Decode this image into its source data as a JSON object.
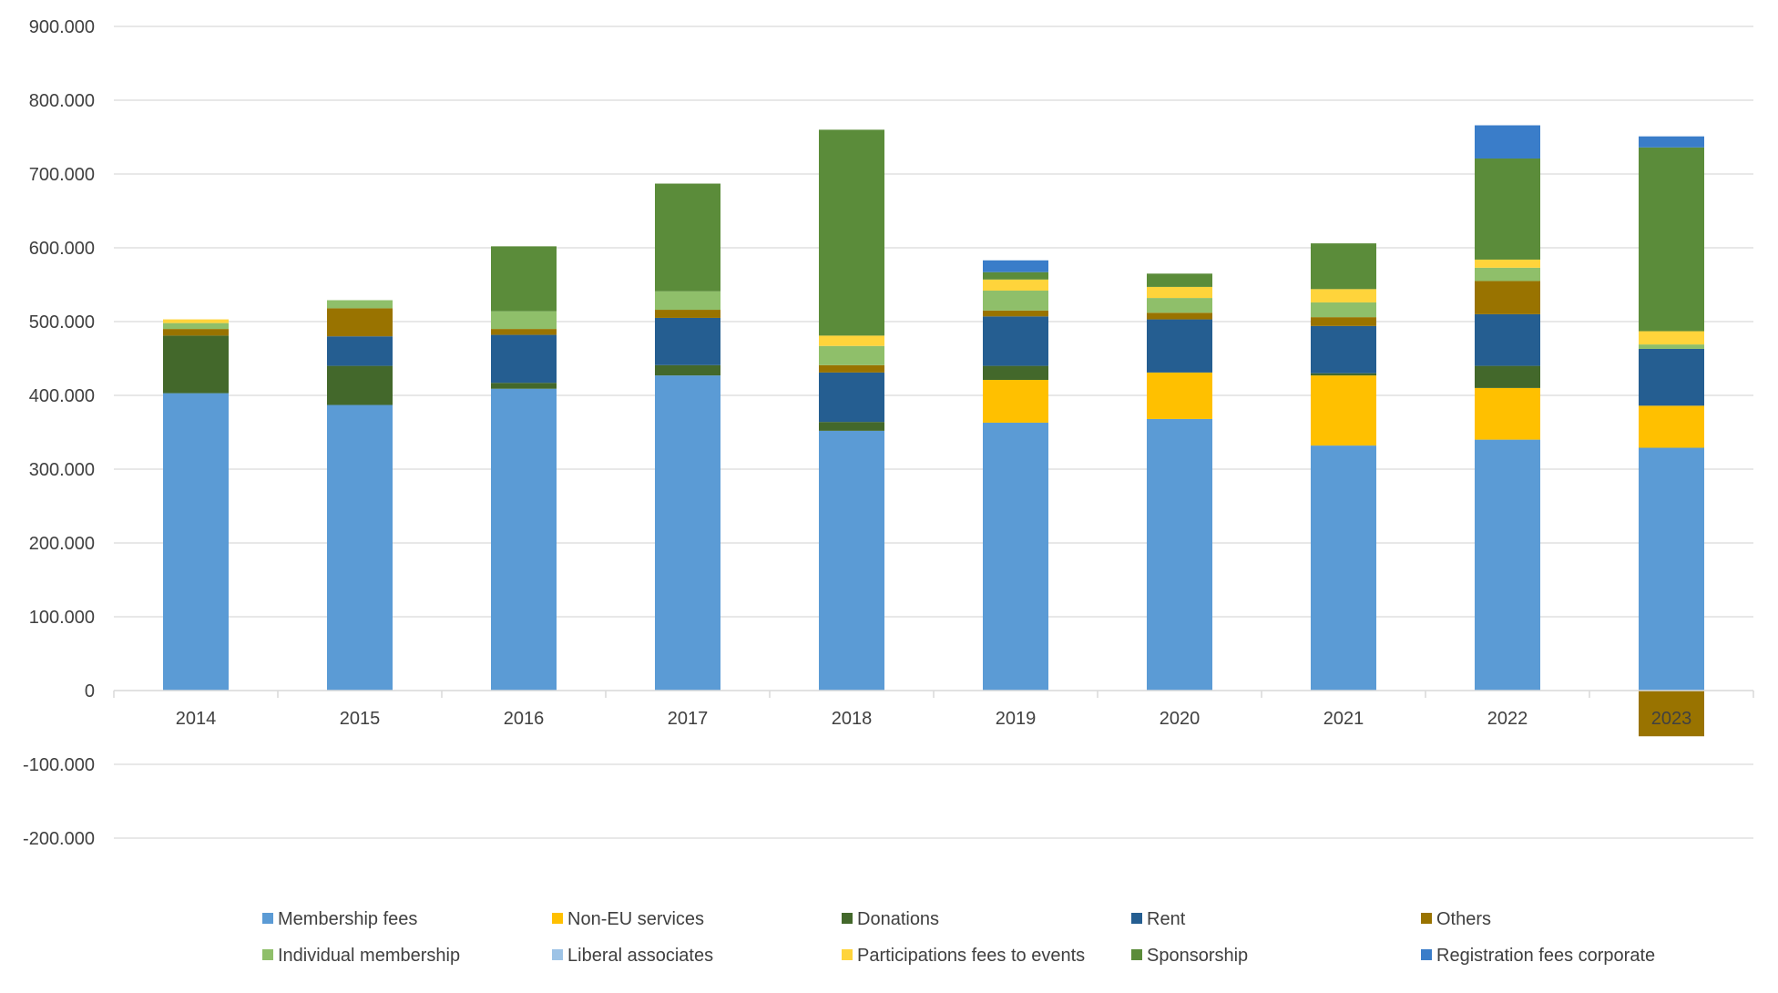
{
  "chart_data": {
    "type": "bar",
    "stacked": true,
    "title": "",
    "xlabel": "",
    "ylabel": "",
    "ylim": [
      -200000,
      900000
    ],
    "yticks": [
      900000,
      800000,
      700000,
      600000,
      500000,
      400000,
      300000,
      200000,
      100000,
      0,
      -100000,
      -200000
    ],
    "ytick_labels": [
      "900.000",
      "800.000",
      "700.000",
      "600.000",
      "500.000",
      "400.000",
      "300.000",
      "200.000",
      "100.000",
      "0",
      "-100.000",
      "-200.000"
    ],
    "grid": true,
    "legend_position": "bottom",
    "categories": [
      "2014",
      "2015",
      "2016",
      "2017",
      "2018",
      "2019",
      "2020",
      "2021",
      "2022",
      "2023"
    ],
    "series": [
      {
        "name": "Membership fees",
        "color": "#5B9BD5",
        "values": [
          403000,
          387000,
          409000,
          427000,
          352000,
          363000,
          368000,
          332000,
          340000,
          329000
        ]
      },
      {
        "name": "Non-EU services",
        "color": "#FFC000",
        "values": [
          0,
          0,
          0,
          0,
          0,
          58000,
          63000,
          95000,
          70000,
          57000
        ]
      },
      {
        "name": "Donations",
        "color": "#43682B",
        "values": [
          78000,
          53000,
          8000,
          14000,
          12000,
          19000,
          0,
          3000,
          30000,
          0
        ]
      },
      {
        "name": "Rent",
        "color": "#255E91",
        "values": [
          0,
          40000,
          65000,
          64000,
          67000,
          67000,
          72000,
          64000,
          70000,
          77000
        ]
      },
      {
        "name": "Others",
        "color": "#997300",
        "values": [
          9000,
          38000,
          8000,
          11000,
          10000,
          8000,
          9000,
          12000,
          45000,
          -62000
        ]
      },
      {
        "name": "Individual membership",
        "color": "#8FBF6A",
        "values": [
          8000,
          11000,
          24000,
          25000,
          26000,
          27000,
          20000,
          20000,
          18000,
          6000
        ]
      },
      {
        "name": "Liberal associates",
        "color": "#9DC3E6",
        "values": [
          0,
          0,
          0,
          0,
          0,
          0,
          0,
          0,
          0,
          0
        ]
      },
      {
        "name": "Participations fees to events",
        "color": "#FFD43B",
        "values": [
          5000,
          0,
          0,
          0,
          14000,
          15000,
          15000,
          18000,
          11000,
          18000
        ]
      },
      {
        "name": "Sponsorship",
        "color": "#5B8C3A",
        "values": [
          0,
          0,
          88000,
          146000,
          279000,
          10000,
          18000,
          62000,
          137000,
          249000
        ]
      },
      {
        "name": "Registration fees corporate",
        "color": "#3A7DC9",
        "values": [
          0,
          0,
          0,
          0,
          0,
          16000,
          0,
          0,
          45000,
          15000
        ]
      }
    ]
  }
}
